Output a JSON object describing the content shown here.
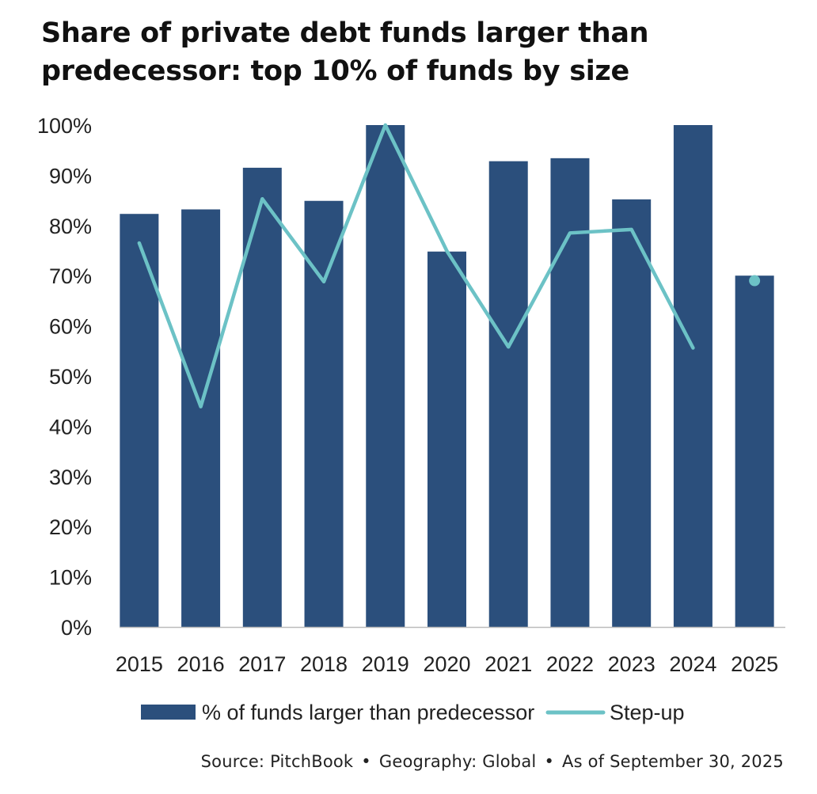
{
  "title_lines": [
    "Share of private debt funds larger than",
    "predecessor: top 10% of funds by size"
  ],
  "colors": {
    "bar": "#2b4f7c",
    "line": "#6cc2c6",
    "axis": "#bbbbbb",
    "text": "#222222"
  },
  "chart_data": {
    "type": "bar",
    "title": "Share of private debt funds larger than predecessor: top 10% of funds by size",
    "categories": [
      "2015",
      "2016",
      "2017",
      "2018",
      "2019",
      "2020",
      "2021",
      "2022",
      "2023",
      "2024",
      "2025"
    ],
    "series": [
      {
        "name": "% of funds larger than predecessor",
        "kind": "bar",
        "values": [
          82.3,
          83.2,
          91.5,
          84.9,
          100,
          74.8,
          92.8,
          93.4,
          85.2,
          100,
          70.0
        ]
      },
      {
        "name": "Step-up",
        "kind": "line",
        "values": [
          76.5,
          43.9,
          85.3,
          68.8,
          100,
          74.9,
          55.8,
          78.5,
          79.2,
          55.6,
          69.0
        ]
      }
    ],
    "yticks": [
      "0%",
      "10%",
      "20%",
      "30%",
      "40%",
      "50%",
      "60%",
      "70%",
      "80%",
      "90%",
      "100%"
    ],
    "ylim": [
      0,
      100
    ],
    "xlabel": "",
    "ylabel": "",
    "legend_position": "bottom",
    "grid": false
  },
  "legend": {
    "bar_label": "% of funds larger than predecessor",
    "line_label": "Step-up"
  },
  "source": {
    "source": "Source: PitchBook",
    "separator": "•",
    "geography": "Geography: Global",
    "as_of": "As of September 30, 2025"
  }
}
